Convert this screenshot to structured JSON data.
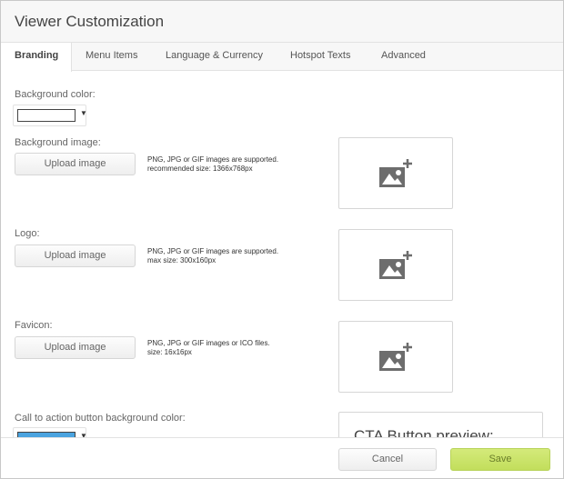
{
  "header": {
    "title": "Viewer Customization"
  },
  "tabs": [
    {
      "label": "Branding",
      "active": true
    },
    {
      "label": "Menu Items"
    },
    {
      "label": "Language & Currency"
    },
    {
      "label": "Hotspot Texts"
    },
    {
      "label": "Advanced"
    }
  ],
  "branding": {
    "background_color": {
      "label": "Background color:",
      "value": "#ffffff"
    },
    "background_image": {
      "label": "Background image:",
      "button": "Upload image",
      "note1": "PNG, JPG or GIF images are supported.",
      "note2": "recommended size: 1366x768px"
    },
    "logo": {
      "label": "Logo:",
      "button": "Upload image",
      "note1": "PNG, JPG or GIF images are supported.",
      "note2": "max size: 300x160px"
    },
    "favicon": {
      "label": "Favicon:",
      "button": "Upload image",
      "note1": "PNG, JPG or GIF images or ICO files.",
      "note2": "size: 16x16px"
    },
    "cta_color": {
      "label": "Call to action button background color:",
      "value": "#4aa3df"
    },
    "cta_preview": {
      "title": "CTA Button preview:"
    }
  },
  "footer": {
    "cancel": "Cancel",
    "save": "Save"
  },
  "icons": {
    "image_placeholder": "add-image-icon",
    "dropdown": "caret-down-icon"
  }
}
